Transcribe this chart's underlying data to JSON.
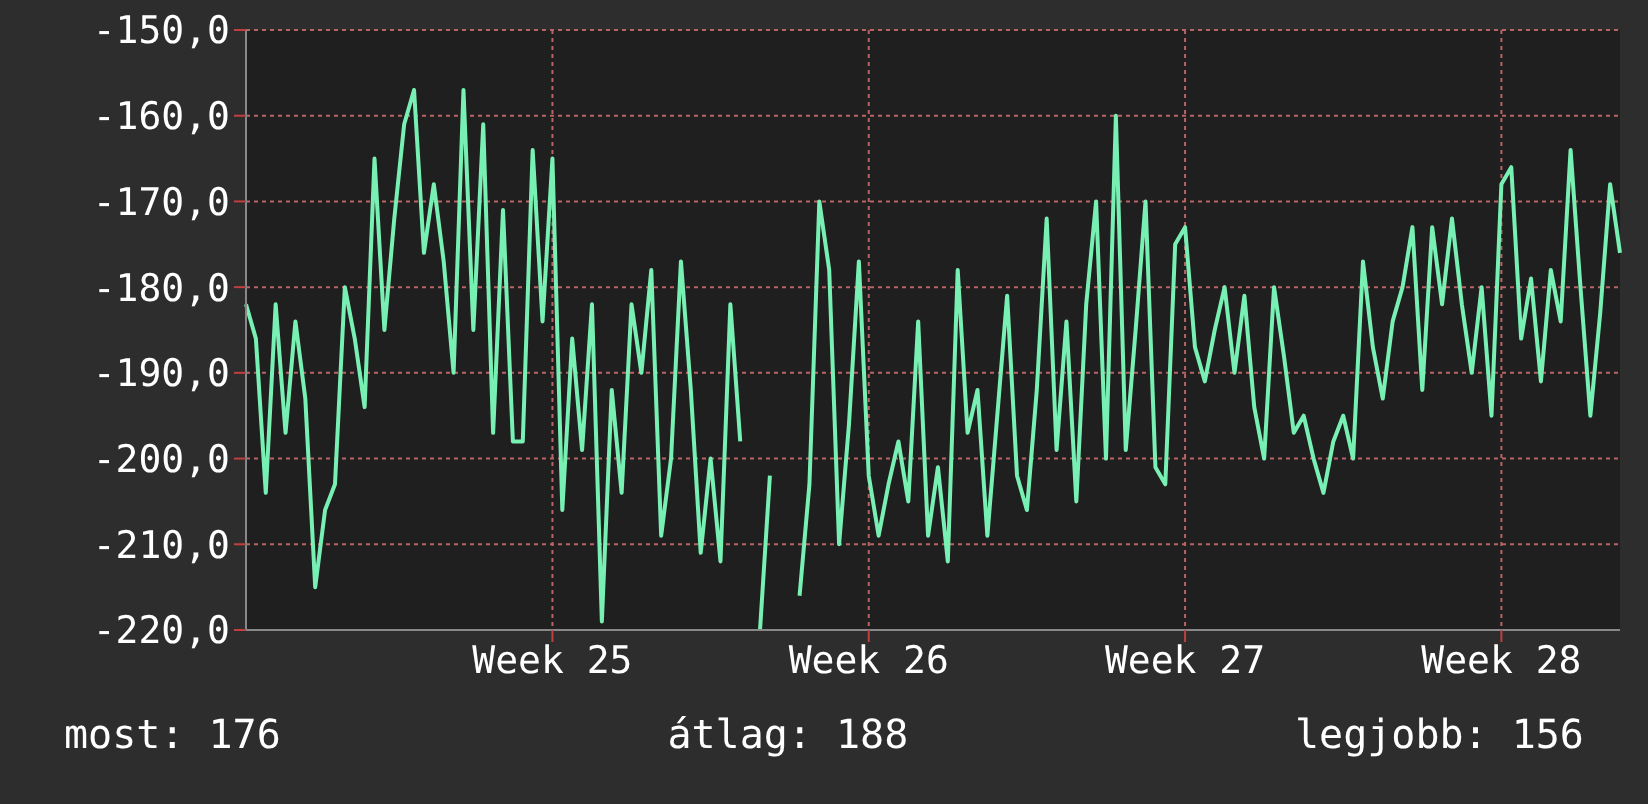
{
  "chart_data": {
    "type": "line",
    "categories": [
      null,
      null,
      null,
      null,
      null,
      null,
      null,
      null,
      null,
      null,
      null,
      null,
      null,
      null,
      null,
      null,
      null,
      null,
      null,
      null,
      null,
      null,
      null,
      null,
      null,
      null,
      null,
      null,
      null,
      null,
      null,
      "Week 25",
      null,
      null,
      null,
      null,
      null,
      null,
      null,
      null,
      null,
      null,
      null,
      null,
      null,
      null,
      null,
      null,
      null,
      null,
      null,
      null,
      null,
      null,
      null,
      null,
      null,
      null,
      null,
      null,
      null,
      null,
      null,
      "Week 26",
      null,
      null,
      null,
      null,
      null,
      null,
      null,
      null,
      null,
      null,
      null,
      null,
      null,
      null,
      null,
      null,
      null,
      null,
      null,
      null,
      null,
      null,
      null,
      null,
      null,
      null,
      null,
      null,
      null,
      null,
      null,
      "Week 27",
      null,
      null,
      null,
      null,
      null,
      null,
      null,
      null,
      null,
      null,
      null,
      null,
      null,
      null,
      null,
      null,
      null,
      null,
      null,
      null,
      null,
      null,
      null,
      null,
      null,
      null,
      null,
      null,
      null,
      null,
      null,
      "Week 28",
      null,
      null,
      null,
      null,
      null,
      null,
      null,
      null,
      null,
      null,
      null,
      null
    ],
    "series": [
      {
        "color": "#78f0b4",
        "values": [
          -182,
          -186,
          -204,
          -182,
          -197,
          -184,
          -193,
          -215,
          -206,
          -203,
          -180,
          -186,
          -194,
          -165,
          -185,
          -172,
          -161,
          -157,
          -176,
          -168,
          -177,
          -190,
          -157,
          -185,
          -161,
          -197,
          -171,
          -198,
          -198,
          -164,
          -184,
          -165,
          -206,
          -186,
          -199,
          -182,
          -219,
          -192,
          -204,
          -182,
          -190,
          -178,
          -209,
          -200,
          -177,
          -192,
          -211,
          -200,
          -212,
          -182,
          -198,
          null,
          -220,
          -202,
          null,
          null,
          -216,
          -203,
          -170,
          -178,
          -210,
          -196,
          -177,
          -202,
          -209,
          -203,
          -198,
          -205,
          -184,
          -209,
          -201,
          -212,
          -178,
          -197,
          -192,
          -209,
          -195,
          -181,
          -202,
          -206,
          -192,
          -172,
          -199,
          -184,
          -205,
          -182,
          -170,
          -200,
          -160,
          -199,
          -185,
          -170,
          -201,
          -203,
          -175,
          -173,
          -187,
          -191,
          -185,
          -180,
          -190,
          -181,
          -194,
          -200,
          -180,
          -188,
          -197,
          -195,
          -200,
          -204,
          -198,
          -195,
          -200,
          -177,
          -187,
          -193,
          -184,
          -180,
          -173,
          -192,
          -173,
          -182,
          -172,
          -182,
          -190,
          -180,
          -195,
          -168,
          -166,
          -186,
          -179,
          -191,
          -178,
          -184,
          -164,
          -180,
          -195,
          -183,
          -168,
          -176
        ]
      }
    ],
    "ylim": [
      -220,
      -150
    ],
    "yticks": [
      {
        "value": -220,
        "label": "-220,0"
      },
      {
        "value": -210,
        "label": "-210,0"
      },
      {
        "value": -200,
        "label": "-200,0"
      },
      {
        "value": -190,
        "label": "-190,0"
      },
      {
        "value": -180,
        "label": "-180,0"
      },
      {
        "value": -170,
        "label": "-170,0"
      },
      {
        "value": -160,
        "label": "-160,0"
      },
      {
        "value": -150,
        "label": "-150,0"
      }
    ],
    "grid": true,
    "line_style": "solid",
    "annotations": [
      "most: 176",
      "átlag: 188",
      "legjobb: 156"
    ]
  }
}
